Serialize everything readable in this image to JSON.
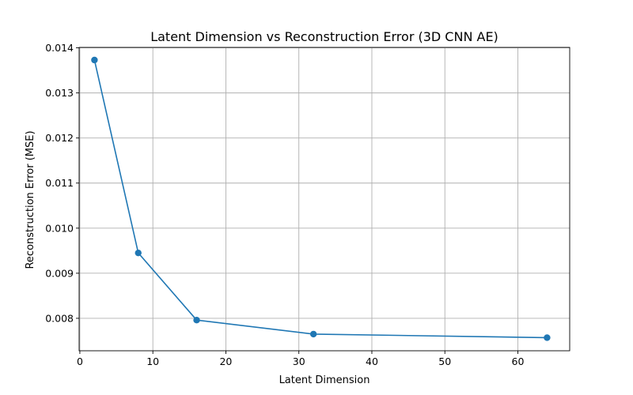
{
  "chart_data": {
    "type": "line",
    "title": "Latent Dimension vs Reconstruction Error (3D CNN AE)",
    "xlabel": "Latent Dimension",
    "ylabel": "Reconstruction Error (MSE)",
    "xlim": [
      -0.1,
      67.1
    ],
    "ylim": [
      0.00728,
      0.01401
    ],
    "x_ticks": [
      0,
      10,
      20,
      30,
      40,
      50,
      60
    ],
    "y_ticks": [
      0.008,
      0.009,
      0.01,
      0.011,
      0.012,
      0.013,
      0.014
    ],
    "x_tick_labels": [
      "0",
      "10",
      "20",
      "30",
      "40",
      "50",
      "60"
    ],
    "y_tick_labels": [
      "0.008",
      "0.009",
      "0.010",
      "0.011",
      "0.012",
      "0.013",
      "0.014"
    ],
    "grid": true,
    "series": [
      {
        "color": "#1f77b4",
        "marker": "circle",
        "x": [
          2,
          8,
          16,
          32,
          64
        ],
        "y": [
          0.01373,
          0.00945,
          0.00796,
          0.00765,
          0.00757
        ]
      }
    ]
  }
}
